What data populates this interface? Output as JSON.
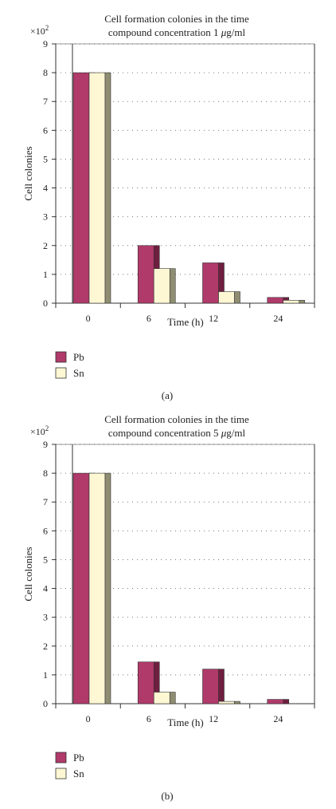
{
  "chart_data": [
    {
      "type": "bar",
      "title_line1": "Cell formation colonies in the time",
      "title_line2_prefix": "compound concentration 1 ",
      "title_line2_mu": "μ",
      "title_line2_suffix": "g/ml",
      "scale_prefix": "×10",
      "scale_exponent": "2",
      "xlabel": "Time (h)",
      "ylabel": "Cell colonies",
      "ylim": [
        0,
        9
      ],
      "yticks": [
        0,
        1,
        2,
        3,
        4,
        5,
        6,
        7,
        8,
        9
      ],
      "grid": true,
      "categories": [
        "0",
        "6",
        "12",
        "24"
      ],
      "series": [
        {
          "name": "Pb",
          "values": [
            8,
            2,
            1.4,
            0.2
          ]
        },
        {
          "name": "Sn",
          "values": [
            8,
            1.2,
            0.4,
            0.1
          ]
        }
      ],
      "legend_position": "bottom-left",
      "caption": "(a)"
    },
    {
      "type": "bar",
      "title_line1": "Cell formation colonies in the time",
      "title_line2_prefix": "compound concentration 5 ",
      "title_line2_mu": "μ",
      "title_line2_suffix": "g/ml",
      "scale_prefix": "×10",
      "scale_exponent": "2",
      "xlabel": "Time (h)",
      "ylabel": "Cell colonies",
      "ylim": [
        0,
        9
      ],
      "yticks": [
        0,
        1,
        2,
        3,
        4,
        5,
        6,
        7,
        8,
        9
      ],
      "grid": true,
      "categories": [
        "0",
        "6",
        "12",
        "24"
      ],
      "series": [
        {
          "name": "Pb",
          "values": [
            8,
            1.45,
            1.2,
            0.15
          ]
        },
        {
          "name": "Sn",
          "values": [
            8,
            0.4,
            0.08,
            0
          ]
        }
      ],
      "legend_position": "bottom-left",
      "caption": "(b)"
    }
  ],
  "colors": {
    "pb_front": "#b03a6a",
    "pb_side": "#6e1f40",
    "sn_front": "#fdf8d3",
    "sn_side": "#8f8e72",
    "axis": "#333333",
    "grid": "#777777"
  }
}
